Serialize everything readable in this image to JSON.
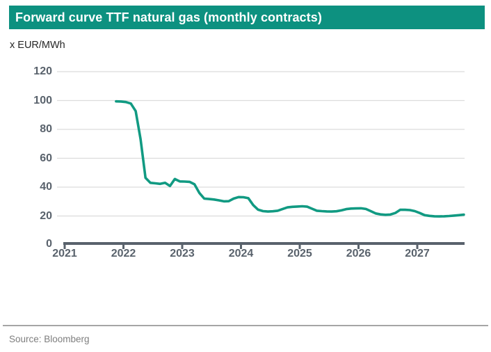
{
  "header": {
    "title": "Forward curve TTF natural gas (monthly contracts)"
  },
  "unit_label": "x EUR/MWh",
  "source": "Source: Bloomberg",
  "colors": {
    "header_bar": "#0D9180",
    "line": "#119A82",
    "axis": "#59626C",
    "tick_text": "#59626C",
    "gridline": "#DCDCDC",
    "divider": "#A5A5A5",
    "source_text": "#7E7E7E"
  },
  "chart_data": {
    "type": "line",
    "title": "Forward curve TTF natural gas (monthly contracts)",
    "ylabel": "x EUR/MWh",
    "unit": "EUR/MWh",
    "ylim": [
      0,
      120
    ],
    "xlim": [
      2021,
      2027.9
    ],
    "grid": "horizontal",
    "legend_position": "none",
    "y_ticks": [
      0,
      20,
      40,
      60,
      80,
      100,
      120
    ],
    "x_ticks": [
      2021,
      2022,
      2023,
      2024,
      2025,
      2026,
      2027
    ],
    "y_tick_labels": [
      "120",
      "100",
      "80",
      "60",
      "40",
      "20",
      "0"
    ],
    "x_tick_labels": [
      "2021",
      "2022",
      "2023",
      "2024",
      "2025",
      "2026",
      "2027"
    ],
    "series": [
      {
        "name": "TTF natural gas forward curve (monthly contracts)",
        "color": "#119A82",
        "start_month": "2021-11",
        "end_month": "2027-10",
        "interval": "monthly",
        "values": [
          99.3,
          99.2,
          98.8,
          97.8,
          92.5,
          73.0,
          46.0,
          42.5,
          42.2,
          41.8,
          42.5,
          40.3,
          45.2,
          43.5,
          43.4,
          43.2,
          41.5,
          35.5,
          31.5,
          31.2,
          30.9,
          30.3,
          29.6,
          29.7,
          31.5,
          32.6,
          32.5,
          31.8,
          27.0,
          23.8,
          22.8,
          22.5,
          22.7,
          23.1,
          24.3,
          25.4,
          25.8,
          26.0,
          26.2,
          25.9,
          24.5,
          23.1,
          22.8,
          22.6,
          22.5,
          22.7,
          23.3,
          24.2,
          24.6,
          24.7,
          24.8,
          24.3,
          22.8,
          21.2,
          20.5,
          20.2,
          20.4,
          21.5,
          23.7,
          23.7,
          23.5,
          22.8,
          21.5,
          20.0,
          19.5,
          19.2,
          19.1,
          19.2,
          19.4,
          19.7,
          20.0,
          20.3
        ]
      }
    ]
  }
}
